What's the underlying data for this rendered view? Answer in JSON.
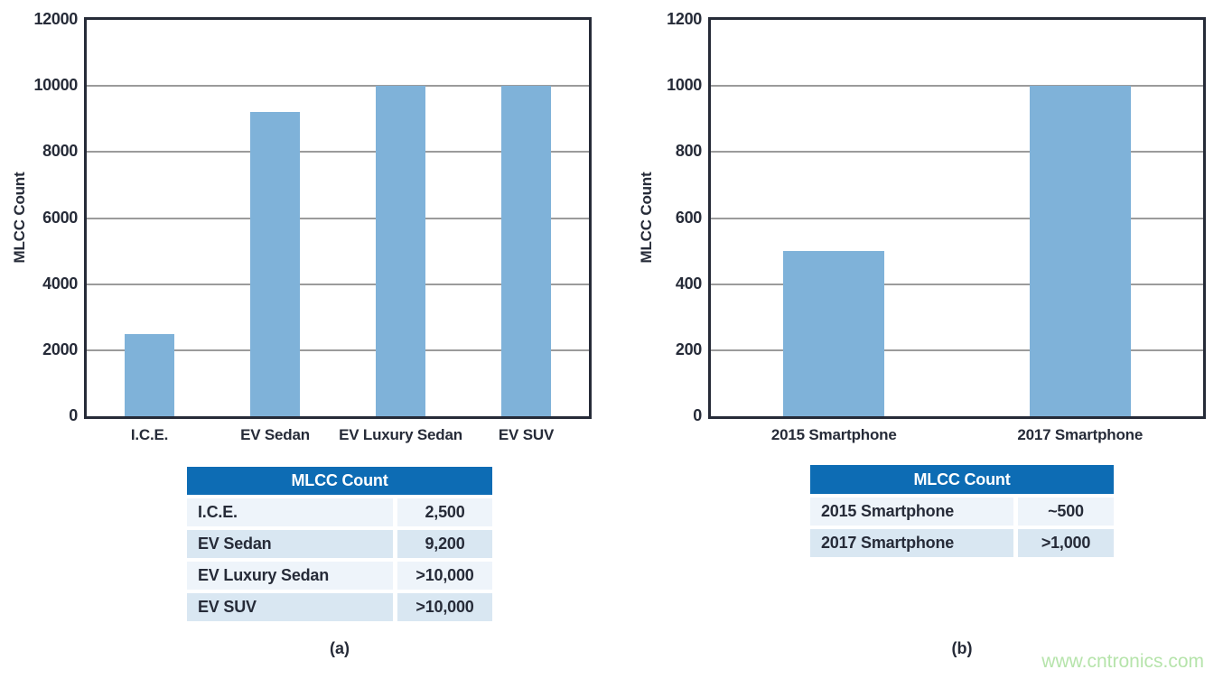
{
  "page": {
    "background": "#ffffff",
    "watermark_text": "www.cntronics.com"
  },
  "colors": {
    "bar": "#7fb2d9",
    "axis": "#262b38",
    "grid": "#9b9b9b",
    "text": "#262b38",
    "table_header_bg": "#0d6cb4",
    "table_header_text": "#ffffff",
    "table_row_light": "#eef4fa",
    "table_row_mid": "#d9e7f2",
    "watermark": "#b6e4ab"
  },
  "chart_data": [
    {
      "type": "bar",
      "panel": "a",
      "caption": "(a)",
      "title": "",
      "xlabel": "",
      "ylabel": "MLCC Count",
      "ylim": [
        0,
        12000
      ],
      "ytick_interval": 2000,
      "yticks": [
        "12000",
        "10000",
        "8000",
        "6000",
        "4000",
        "2000",
        "0"
      ],
      "grid": "horizontal",
      "legend": "none",
      "categories": [
        "I.C.E.",
        "EV Sedan",
        "EV Luxury Sedan",
        "EV SUV"
      ],
      "values": [
        2500,
        9200,
        10000,
        10000
      ],
      "table": {
        "title": "MLCC Count",
        "rows": [
          {
            "label": "I.C.E.",
            "value": "2,500"
          },
          {
            "label": "EV Sedan",
            "value": "9,200"
          },
          {
            "label": "EV Luxury Sedan",
            "value": ">10,000"
          },
          {
            "label": "EV SUV",
            "value": ">10,000"
          }
        ]
      }
    },
    {
      "type": "bar",
      "panel": "b",
      "caption": "(b)",
      "title": "",
      "xlabel": "",
      "ylabel": "MLCC Count",
      "ylim": [
        0,
        1200
      ],
      "ytick_interval": 200,
      "yticks": [
        "1200",
        "1000",
        "800",
        "600",
        "400",
        "200",
        "0"
      ],
      "grid": "horizontal",
      "legend": "none",
      "categories": [
        "2015 Smartphone",
        "2017 Smartphone"
      ],
      "values": [
        500,
        1000
      ],
      "table": {
        "title": "MLCC Count",
        "rows": [
          {
            "label": "2015 Smartphone",
            "value": "~500"
          },
          {
            "label": "2017 Smartphone",
            "value": ">1,000"
          }
        ]
      }
    }
  ]
}
